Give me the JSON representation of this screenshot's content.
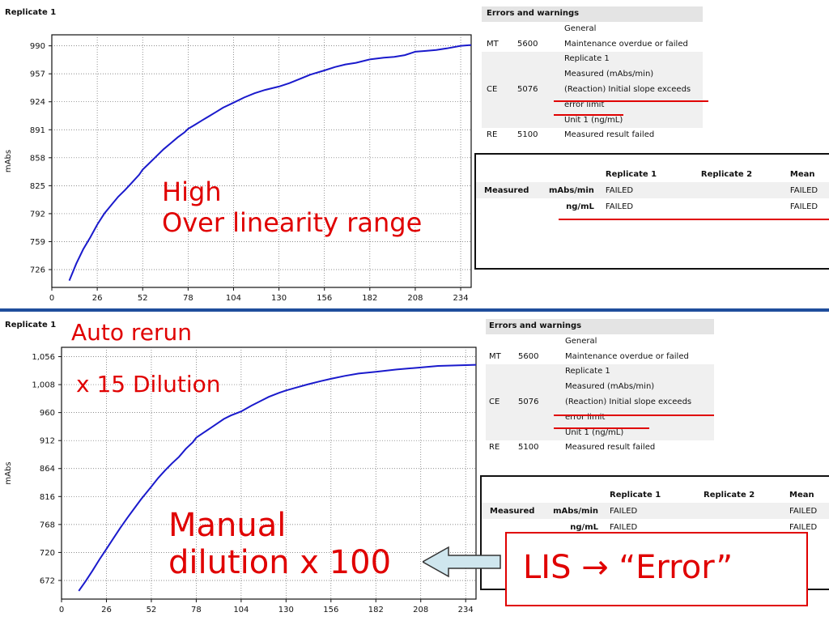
{
  "top": {
    "chart_title": "Replicate 1",
    "chart_data": {
      "type": "line",
      "ylabel": "mAbs",
      "xlim": [
        0,
        240
      ],
      "ylim": [
        705,
        1003
      ],
      "xticks": [
        "0",
        "26",
        "52",
        "78",
        "104",
        "130",
        "156",
        "182",
        "208",
        "234"
      ],
      "yticks": [
        "726",
        "759",
        "792",
        "825",
        "858",
        "891",
        "924",
        "957",
        "990"
      ],
      "grid": true,
      "x": [
        10,
        14,
        18,
        22,
        26,
        30,
        34,
        38,
        42,
        46,
        50,
        52,
        56,
        60,
        64,
        68,
        72,
        76,
        78,
        82,
        86,
        90,
        94,
        98,
        104,
        110,
        116,
        122,
        126,
        130,
        136,
        142,
        148,
        156,
        162,
        168,
        174,
        182,
        190,
        196,
        202,
        208,
        214,
        220,
        226,
        234,
        240
      ],
      "values": [
        713,
        733,
        750,
        764,
        779,
        792,
        802,
        812,
        820,
        829,
        838,
        844,
        852,
        860,
        868,
        875,
        882,
        888,
        892,
        897,
        902,
        907,
        912,
        917,
        923,
        929,
        934,
        938,
        940,
        942,
        946,
        951,
        956,
        961,
        965,
        968,
        970,
        974,
        976,
        977,
        979,
        983,
        984,
        985,
        987,
        990,
        991
      ]
    },
    "errors": {
      "title": "Errors and warnings",
      "rows": [
        {
          "code": "",
          "num": "",
          "text": "General"
        },
        {
          "code": "MT",
          "num": "5600",
          "text": "Maintenance overdue or failed"
        },
        {
          "code": "",
          "num": "",
          "text": "Replicate 1"
        },
        {
          "code": "",
          "num": "",
          "text": "Measured (mAbs/min)"
        },
        {
          "code": "CE",
          "num": "5076",
          "text": "(Reaction) Initial slope exceeds"
        },
        {
          "code": "",
          "num": "",
          "text": "error limit"
        },
        {
          "code": "",
          "num": "",
          "text": "Unit 1 (ng/mL)"
        },
        {
          "code": "RE",
          "num": "5100",
          "text": "Measured result failed"
        }
      ]
    },
    "results": {
      "headers": [
        "Replicate 1",
        "Replicate 2",
        "Mean"
      ],
      "row_label": "Measured",
      "rows": [
        {
          "unit": "mAbs/min",
          "rep1": "FAILED",
          "rep2": "",
          "mean": "FAILED"
        },
        {
          "unit": "ng/mL",
          "rep1": "FAILED",
          "rep2": "",
          "mean": "FAILED"
        }
      ]
    },
    "annotation_line1": "High",
    "annotation_line2": "Over linearity range"
  },
  "bottom": {
    "chart_title": "Replicate 1",
    "chart_data": {
      "type": "line",
      "ylabel": "mAbs",
      "xlim": [
        0,
        240
      ],
      "ylim": [
        640,
        1072
      ],
      "xticks": [
        "0",
        "26",
        "52",
        "78",
        "104",
        "130",
        "156",
        "182",
        "208",
        "234"
      ],
      "yticks": [
        "672",
        "720",
        "768",
        "816",
        "864",
        "912",
        "960",
        "1,008",
        "1,056"
      ],
      "grid": true,
      "x": [
        10,
        14,
        18,
        22,
        26,
        30,
        34,
        38,
        42,
        46,
        52,
        56,
        60,
        64,
        68,
        72,
        76,
        78,
        82,
        86,
        90,
        94,
        98,
        104,
        110,
        116,
        120,
        126,
        130,
        136,
        142,
        150,
        156,
        164,
        172,
        182,
        194,
        206,
        218,
        230,
        240
      ],
      "values": [
        654,
        671,
        689,
        708,
        726,
        744,
        762,
        779,
        795,
        811,
        833,
        848,
        861,
        873,
        884,
        898,
        909,
        917,
        925,
        933,
        941,
        949,
        955,
        962,
        972,
        981,
        987,
        994,
        998,
        1003,
        1008,
        1014,
        1018,
        1023,
        1027,
        1030,
        1034,
        1037,
        1040,
        1041,
        1042
      ]
    },
    "errors": {
      "title": "Errors and warnings",
      "rows": [
        {
          "code": "",
          "num": "",
          "text": "General"
        },
        {
          "code": "MT",
          "num": "5600",
          "text": "Maintenance overdue or failed"
        },
        {
          "code": "",
          "num": "",
          "text": "Replicate 1"
        },
        {
          "code": "",
          "num": "",
          "text": "Measured (mAbs/min)"
        },
        {
          "code": "CE",
          "num": "5076",
          "text": "(Reaction) Initial slope exceeds"
        },
        {
          "code": "",
          "num": "",
          "text": "error limit"
        },
        {
          "code": "",
          "num": "",
          "text": "Unit 1 (ng/mL)"
        },
        {
          "code": "RE",
          "num": "5100",
          "text": "Measured result failed"
        }
      ]
    },
    "results": {
      "headers": [
        "Replicate 1",
        "Replicate 2",
        "Mean"
      ],
      "row_label": "Measured",
      "rows": [
        {
          "unit": "mAbs/min",
          "rep1": "FAILED",
          "rep2": "",
          "mean": "FAILED"
        },
        {
          "unit": "ng/mL",
          "rep1": "FAILED",
          "rep2": "",
          "mean": "FAILED"
        }
      ]
    },
    "annotation_auto_rerun": "Auto rerun",
    "annotation_dilution15": "x 15 Dilution",
    "annotation_manual_line1": "Manual",
    "annotation_manual_line2": "dilution  x 100",
    "lis_label": "LIS →  “Error”"
  },
  "colors": {
    "curve": "#1a1acc",
    "annotation": "#e00000",
    "divider": "#1f4e9c",
    "arrow_fill": "#cfe6ee"
  }
}
